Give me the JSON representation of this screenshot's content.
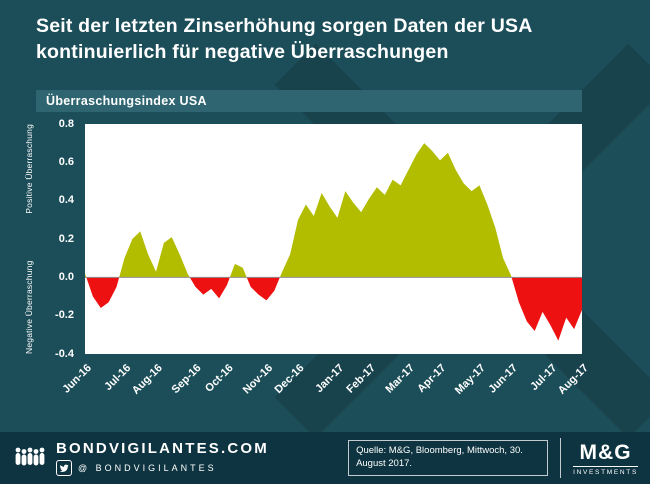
{
  "title_line1": "Seit der letzten Zinserhöhung sorgen Daten der USA",
  "title_line2": "kontinuierlich für negative Überraschungen",
  "chart_header": "Überraschungsindex USA",
  "chart_data": {
    "type": "area",
    "title": "Überraschungsindex USA",
    "ylabel_top": "Positive Überraschung",
    "ylabel_bottom": "Negative Überraschung",
    "ylim": [
      -0.4,
      0.8
    ],
    "y_tick_labels": [
      "0.8",
      "0.6",
      "0.4",
      "0.2",
      "0.0",
      "-0.2",
      "-0.4"
    ],
    "x_tick_labels": [
      "Jun-16",
      "Jul-16",
      "Aug-16",
      "Sep-16",
      "Oct-16",
      "Nov-16",
      "Dec-16",
      "Jan-17",
      "Feb-17",
      "Mar-17",
      "Apr-17",
      "May-17",
      "Jun-17",
      "Jul-17",
      "Aug-17"
    ],
    "x_tick_positions": [
      0,
      5,
      9,
      14,
      18,
      23,
      27,
      32,
      36,
      41,
      45,
      50,
      54,
      59,
      63
    ],
    "values": [
      0.02,
      -0.1,
      -0.16,
      -0.13,
      -0.05,
      0.1,
      0.2,
      0.24,
      0.12,
      0.03,
      0.18,
      0.21,
      0.12,
      0.02,
      -0.05,
      -0.09,
      -0.06,
      -0.11,
      -0.04,
      0.07,
      0.05,
      -0.05,
      -0.09,
      -0.12,
      -0.07,
      0.03,
      0.12,
      0.3,
      0.38,
      0.32,
      0.44,
      0.37,
      0.31,
      0.45,
      0.39,
      0.34,
      0.41,
      0.47,
      0.43,
      0.51,
      0.48,
      0.56,
      0.64,
      0.7,
      0.66,
      0.61,
      0.65,
      0.56,
      0.49,
      0.45,
      0.48,
      0.38,
      0.26,
      0.1,
      0.01,
      -0.13,
      -0.23,
      -0.28,
      -0.18,
      -0.25,
      -0.33,
      -0.21,
      -0.27,
      -0.17
    ],
    "positive_color": "#b2bd00",
    "negative_color": "#ee1111",
    "zero_line_color": "#909090",
    "plot_background": "#ffffff"
  },
  "footer": {
    "site": "BONDVIGILANTES.COM",
    "twitter_handle": "@ BONDVIGILANTES",
    "source": "Quelle: M&G, Bloomberg, Mittwoch, 30. August 2017.",
    "logo_title": "M&G",
    "logo_subtitle": "INVESTMENTS"
  },
  "colors": {
    "background": "#1c4e59",
    "header_bar": "#2e6570",
    "footer_background": "#0d3440",
    "text": "#ffffff"
  }
}
